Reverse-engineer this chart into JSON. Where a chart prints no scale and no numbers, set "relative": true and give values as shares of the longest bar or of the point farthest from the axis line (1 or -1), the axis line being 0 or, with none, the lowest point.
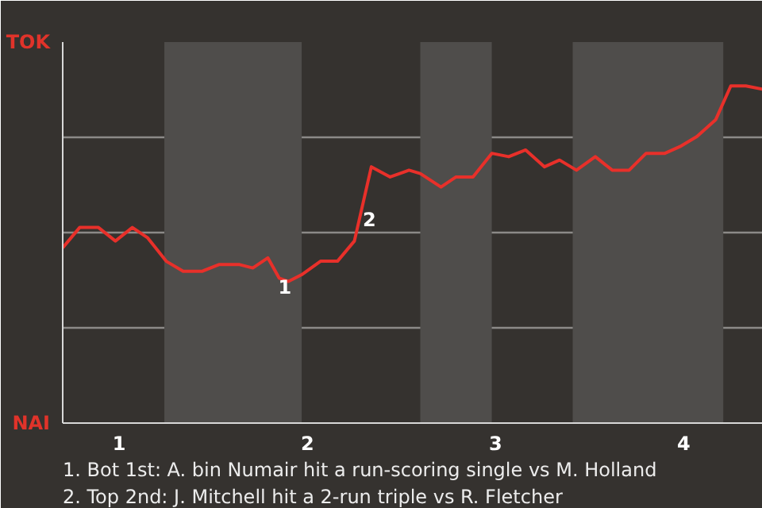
{
  "chart_data": {
    "type": "line",
    "relative": true,
    "x": [
      0.7,
      0.79,
      0.89,
      0.98,
      1.07,
      1.15,
      1.25,
      1.34,
      1.44,
      1.53,
      1.64,
      1.71,
      1.79,
      1.85,
      1.9,
      1.97,
      2.07,
      2.16,
      2.25,
      2.34,
      2.44,
      2.54,
      2.6,
      2.71,
      2.79,
      2.88,
      2.98,
      3.07,
      3.16,
      3.26,
      3.34,
      3.43,
      3.53,
      3.62,
      3.71,
      3.8,
      3.9,
      3.98,
      4.07,
      4.17,
      4.25,
      4.33,
      4.42
    ],
    "series": [
      {
        "color": "#e8302a",
        "values": [
          0.52,
          0.58,
          0.58,
          0.54,
          0.58,
          0.55,
          0.48,
          0.45,
          0.45,
          0.47,
          0.47,
          0.46,
          0.49,
          0.43,
          0.42,
          0.44,
          0.48,
          0.48,
          0.54,
          0.76,
          0.73,
          0.75,
          0.74,
          0.7,
          0.73,
          0.73,
          0.8,
          0.79,
          0.81,
          0.76,
          0.78,
          0.75,
          0.79,
          0.75,
          0.75,
          0.8,
          0.8,
          0.82,
          0.85,
          0.9,
          1,
          1,
          0.99
        ]
      }
    ],
    "xlim": [
      0.7,
      4.42
    ],
    "xticks": [
      1,
      2,
      3,
      4
    ],
    "bands": [
      {
        "axis": "x",
        "from": 1.24,
        "to": 1.97,
        "color": "#4f4d4b"
      },
      {
        "axis": "x",
        "from": 2.6,
        "to": 2.98,
        "color": "#4f4d4b"
      },
      {
        "axis": "x",
        "from": 3.41,
        "to": 4.21,
        "color": "#4f4d4b"
      }
    ],
    "annotations": [
      {
        "text": "1",
        "x": 1.88,
        "y": 0.42
      },
      {
        "text": "2",
        "x": 2.33,
        "y": 0.62
      },
      "TOK",
      "NAI",
      "1. Bot 1st: A. bin Numair hit a run-scoring single vs M. Holland",
      "2. Top 2nd: J. Mitchell hit a 2-run triple vs R. Fletcher"
    ],
    "grid": "y",
    "marker": "none",
    "line_style": "solid"
  }
}
